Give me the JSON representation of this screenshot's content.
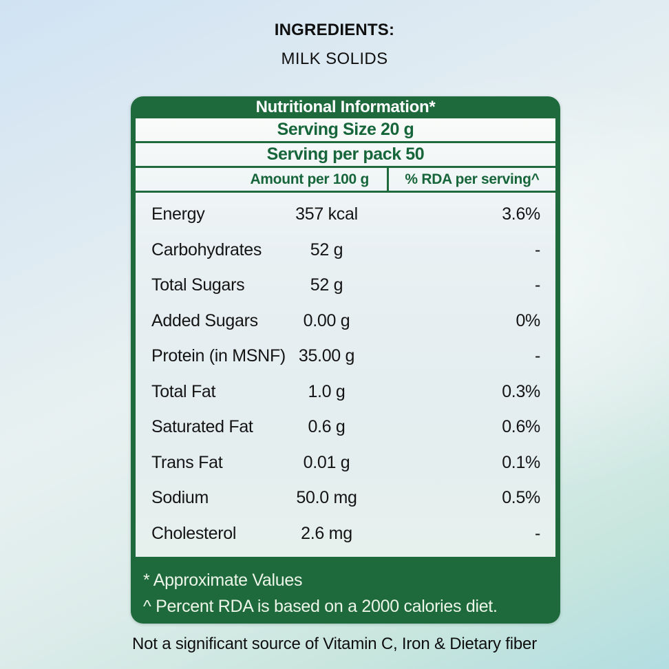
{
  "ingredients": {
    "heading": "INGREDIENTS:",
    "value": "MILK SOLIDS"
  },
  "nutrition_table": {
    "title": "Nutritional Information*",
    "serving_size": "Serving Size 20 g",
    "serving_per_pack": "Serving per pack 50",
    "columns": {
      "amount": "Amount per 100 g",
      "rda": "% RDA per serving^"
    },
    "rows": [
      {
        "nutrient": "Energy",
        "amount": "357 kcal",
        "rda": "3.6%"
      },
      {
        "nutrient": "Carbohydrates",
        "amount": "52 g",
        "rda": "-"
      },
      {
        "nutrient": "Total Sugars",
        "amount": "52 g",
        "rda": "-"
      },
      {
        "nutrient": "Added Sugars",
        "amount": "0.00 g",
        "rda": "0%"
      },
      {
        "nutrient": "Protein (in MSNF)",
        "amount": "35.00 g",
        "rda": "-"
      },
      {
        "nutrient": "Total Fat",
        "amount": "1.0 g",
        "rda": "0.3%"
      },
      {
        "nutrient": "Saturated Fat",
        "amount": "0.6 g",
        "rda": "0.6%"
      },
      {
        "nutrient": "Trans Fat",
        "amount": "0.01 g",
        "rda": "0.1%"
      },
      {
        "nutrient": "Sodium",
        "amount": "50.0 mg",
        "rda": "0.5%"
      },
      {
        "nutrient": "Cholesterol",
        "amount": "2.6 mg",
        "rda": "-"
      }
    ],
    "footnotes": [
      "* Approximate Values",
      "^ Percent RDA is based on a 2000 calories diet."
    ]
  },
  "disclaimer": "Not a significant source of Vitamin C, Iron & Dietary fiber",
  "colors": {
    "table_green": "#1e6a3c",
    "heading_text_green": "#17653a",
    "footnote_text": "#edf5e9",
    "body_text": "#141414"
  }
}
